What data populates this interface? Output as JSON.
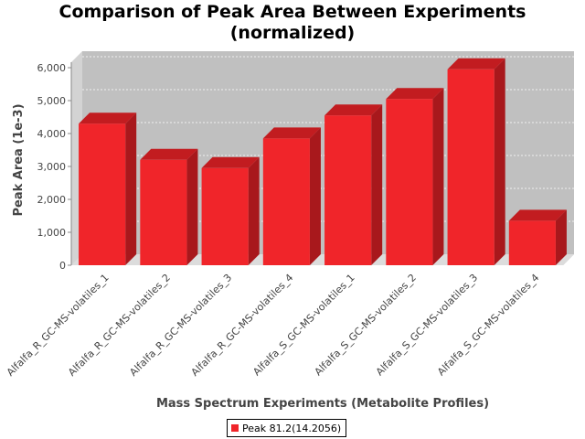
{
  "chart_data": {
    "type": "bar",
    "title": "Comparison of Peak Area Between Experiments (normalized)",
    "title_lines": [
      "Comparison of Peak Area Between Experiments",
      "(normalized)"
    ],
    "xlabel": "Mass Spectrum Experiments (Metabolite Profiles)",
    "ylabel": "Peak Area (1e-3)",
    "ylim": [
      0,
      6000
    ],
    "yticks": [
      0,
      1000,
      2000,
      3000,
      4000,
      5000,
      6000
    ],
    "ytick_labels": [
      "0",
      "1,000",
      "2,000",
      "3,000",
      "4,000",
      "5,000",
      "6,000"
    ],
    "categories": [
      "Alfalfa_R_GC-MS-volatiles_1",
      "Alfalfa_R_GC-MS-volatiles_2",
      "Alfalfa_R_GC-MS-volatiles_3",
      "Alfalfa_R_GC-MS-volatiles_4",
      "Alfalfa_S_GC-MS-volatiles_1",
      "Alfalfa_S_GC-MS-volatiles_2",
      "Alfalfa_S_GC-MS-volatiles_3",
      "Alfalfa_S_GC-MS-volatiles_4"
    ],
    "series": [
      {
        "name": "Peak 81.2(14.2056)",
        "values": [
          4300,
          3200,
          2950,
          3850,
          4550,
          5050,
          5950,
          1350
        ]
      }
    ],
    "grid": true,
    "legend": "bottom",
    "colors": {
      "bar": "#f0252a",
      "bar_top": "#c21c20",
      "bar_side": "#a8181c",
      "plot_bg": "#c0c0c0"
    }
  }
}
